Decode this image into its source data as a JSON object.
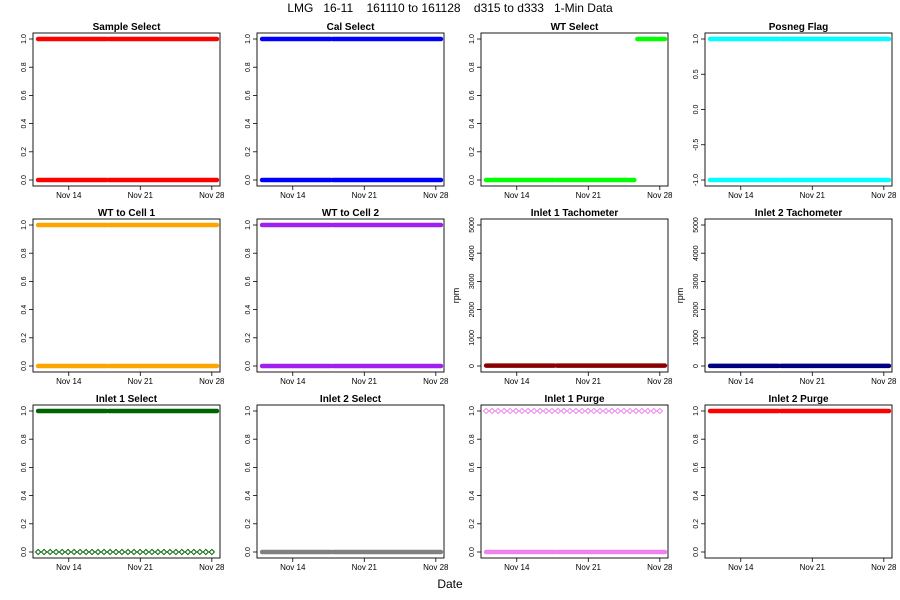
{
  "figure": {
    "title": "LMG   16-11    161110 to 161128    d315 to d333   1-Min Data",
    "xlabel": "Date"
  },
  "chart_data": [
    {
      "type": "scatter",
      "title": "Sample Select",
      "ylabel": "",
      "ylim": [
        0,
        1
      ],
      "yticks": [
        0,
        0.2,
        0.4,
        0.6,
        0.8,
        1
      ],
      "ytick_labels": [
        "0.0",
        "0.2",
        "0.4",
        "0.6",
        "0.8",
        "1.0"
      ],
      "xlim": [
        10.5,
        28.8
      ],
      "xticks": [
        14,
        21,
        28
      ],
      "xtick_labels": [
        "Nov 14",
        "Nov 21",
        "Nov 28"
      ],
      "color": "#ff0000",
      "marker": "filled",
      "series": [
        {
          "name": "level 0",
          "values": [
            {
              "x_start": 11.0,
              "x_end": 28.5,
              "y": 0
            }
          ]
        },
        {
          "name": "level 1",
          "values": [
            {
              "x_start": 11.0,
              "x_end": 28.5,
              "y": 1
            }
          ]
        }
      ],
      "gaps": [
        17.8
      ]
    },
    {
      "type": "scatter",
      "title": "Cal Select",
      "ylabel": "",
      "ylim": [
        0,
        1
      ],
      "yticks": [
        0,
        0.2,
        0.4,
        0.6,
        0.8,
        1
      ],
      "ytick_labels": [
        "0.0",
        "0.2",
        "0.4",
        "0.6",
        "0.8",
        "1.0"
      ],
      "xlim": [
        10.5,
        28.8
      ],
      "xticks": [
        14,
        21,
        28
      ],
      "xtick_labels": [
        "Nov 14",
        "Nov 21",
        "Nov 28"
      ],
      "color": "#0000ff",
      "marker": "filled",
      "series": [
        {
          "name": "level 0",
          "values": [
            {
              "x_start": 11.0,
              "x_end": 28.5,
              "y": 0
            }
          ]
        },
        {
          "name": "level 1",
          "values": [
            {
              "x_start": 11.0,
              "x_end": 28.5,
              "y": 1
            }
          ]
        }
      ],
      "gaps": [
        17.8
      ]
    },
    {
      "type": "scatter",
      "title": "WT Select",
      "ylabel": "",
      "ylim": [
        0,
        1
      ],
      "yticks": [
        0,
        0.2,
        0.4,
        0.6,
        0.8,
        1
      ],
      "ytick_labels": [
        "0.0",
        "0.2",
        "0.4",
        "0.6",
        "0.8",
        "1.0"
      ],
      "xlim": [
        10.5,
        28.8
      ],
      "xticks": [
        14,
        21,
        28
      ],
      "xtick_labels": [
        "Nov 14",
        "Nov 21",
        "Nov 28"
      ],
      "color": "#00ff00",
      "marker": "filled",
      "series": [
        {
          "name": "level 0",
          "values": [
            {
              "x_start": 11.0,
              "x_end": 25.5,
              "y": 0
            }
          ]
        },
        {
          "name": "level 1",
          "values": [
            {
              "x_start": 25.8,
              "x_end": 28.5,
              "y": 1
            }
          ]
        }
      ],
      "gaps": [
        17.8
      ]
    },
    {
      "type": "scatter",
      "title": "Posneg Flag",
      "ylabel": "",
      "ylim": [
        -1,
        1
      ],
      "yticks": [
        -1,
        -0.5,
        0,
        0.5,
        1
      ],
      "ytick_labels": [
        "-1.0",
        "-0.5",
        "0.0",
        "0.5",
        "1.0"
      ],
      "xlim": [
        10.5,
        28.8
      ],
      "xticks": [
        14,
        21,
        28
      ],
      "xtick_labels": [
        "Nov 14",
        "Nov 21",
        "Nov 28"
      ],
      "color": "#00ffff",
      "marker": "filled",
      "series": [
        {
          "name": "level -1",
          "values": [
            {
              "x_start": 11.0,
              "x_end": 28.5,
              "y": -1
            }
          ]
        },
        {
          "name": "level 1",
          "values": [
            {
              "x_start": 11.0,
              "x_end": 28.5,
              "y": 1
            }
          ]
        }
      ],
      "gaps": [
        17.8
      ]
    },
    {
      "type": "scatter",
      "title": "WT to Cell 1",
      "ylabel": "",
      "ylim": [
        0,
        1
      ],
      "yticks": [
        0,
        0.2,
        0.4,
        0.6,
        0.8,
        1
      ],
      "ytick_labels": [
        "0.0",
        "0.2",
        "0.4",
        "0.6",
        "0.8",
        "1.0"
      ],
      "xlim": [
        10.5,
        28.8
      ],
      "xticks": [
        14,
        21,
        28
      ],
      "xtick_labels": [
        "Nov 14",
        "Nov 21",
        "Nov 28"
      ],
      "color": "#ffa500",
      "marker": "filled",
      "series": [
        {
          "name": "level 0",
          "values": [
            {
              "x_start": 11.0,
              "x_end": 28.5,
              "y": 0
            }
          ]
        },
        {
          "name": "level 1",
          "values": [
            {
              "x_start": 11.0,
              "x_end": 28.5,
              "y": 1
            }
          ]
        }
      ],
      "gaps": [
        17.8
      ]
    },
    {
      "type": "scatter",
      "title": "WT to Cell 2",
      "ylabel": "",
      "ylim": [
        0,
        1
      ],
      "yticks": [
        0,
        0.2,
        0.4,
        0.6,
        0.8,
        1
      ],
      "ytick_labels": [
        "0.0",
        "0.2",
        "0.4",
        "0.6",
        "0.8",
        "1.0"
      ],
      "xlim": [
        10.5,
        28.8
      ],
      "xticks": [
        14,
        21,
        28
      ],
      "xtick_labels": [
        "Nov 14",
        "Nov 21",
        "Nov 28"
      ],
      "color": "#a020f0",
      "marker": "filled",
      "series": [
        {
          "name": "level 0",
          "values": [
            {
              "x_start": 11.0,
              "x_end": 28.5,
              "y": 0
            }
          ]
        },
        {
          "name": "level 1",
          "values": [
            {
              "x_start": 11.0,
              "x_end": 28.5,
              "y": 1
            }
          ]
        }
      ],
      "gaps": [
        17.8
      ]
    },
    {
      "type": "scatter",
      "title": "Inlet 1 Tachometer",
      "ylabel": "rpm",
      "ylim": [
        0,
        5000
      ],
      "yticks": [
        0,
        1000,
        2000,
        3000,
        4000,
        5000
      ],
      "ytick_labels": [
        "0",
        "1000",
        "2000",
        "3000",
        "4000",
        "5000"
      ],
      "xlim": [
        10.5,
        28.8
      ],
      "xticks": [
        14,
        21,
        28
      ],
      "xtick_labels": [
        "Nov 14",
        "Nov 21",
        "Nov 28"
      ],
      "color": "#8b0000",
      "marker": "filled",
      "series": [
        {
          "name": "speed",
          "values": [
            {
              "x_start": 11.0,
              "x_end": 28.5,
              "y": 15
            }
          ]
        }
      ],
      "gaps": [
        17.8
      ]
    },
    {
      "type": "scatter",
      "title": "Inlet 2 Tachometer",
      "ylabel": "rpm",
      "ylim": [
        0,
        5000
      ],
      "yticks": [
        0,
        1000,
        2000,
        3000,
        4000,
        5000
      ],
      "ytick_labels": [
        "0",
        "1000",
        "2000",
        "3000",
        "4000",
        "5000"
      ],
      "xlim": [
        10.5,
        28.8
      ],
      "xticks": [
        14,
        21,
        28
      ],
      "xtick_labels": [
        "Nov 14",
        "Nov 21",
        "Nov 28"
      ],
      "color": "#000080",
      "marker": "filled",
      "series": [
        {
          "name": "speed",
          "values": [
            {
              "x_start": 11.0,
              "x_end": 28.5,
              "y": 5
            }
          ]
        }
      ],
      "gaps": [
        17.8
      ]
    },
    {
      "type": "scatter",
      "title": "Inlet 1 Select",
      "ylabel": "",
      "ylim": [
        0,
        1
      ],
      "yticks": [
        0,
        0.2,
        0.4,
        0.6,
        0.8,
        1
      ],
      "ytick_labels": [
        "0.0",
        "0.2",
        "0.4",
        "0.6",
        "0.8",
        "1.0"
      ],
      "xlim": [
        10.5,
        28.8
      ],
      "xticks": [
        14,
        21,
        28
      ],
      "xtick_labels": [
        "Nov 14",
        "Nov 21",
        "Nov 28"
      ],
      "color": "#006400",
      "marker": "filled",
      "series": [
        {
          "name": "level 1",
          "values": [
            {
              "x_start": 11.0,
              "x_end": 28.5,
              "y": 1
            }
          ]
        },
        {
          "name": "level 0",
          "marker": "open-diamond",
          "values": [
            {
              "x_start": 11.0,
              "x_end": 28.0,
              "y": 0,
              "count": 30
            }
          ]
        }
      ],
      "gaps": [
        17.8
      ]
    },
    {
      "type": "scatter",
      "title": "Inlet 2 Select",
      "ylabel": "",
      "ylim": [
        0,
        1
      ],
      "yticks": [
        0,
        0.2,
        0.4,
        0.6,
        0.8,
        1
      ],
      "ytick_labels": [
        "0.0",
        "0.2",
        "0.4",
        "0.6",
        "0.8",
        "1.0"
      ],
      "xlim": [
        10.5,
        28.8
      ],
      "xticks": [
        14,
        21,
        28
      ],
      "xtick_labels": [
        "Nov 14",
        "Nov 21",
        "Nov 28"
      ],
      "color": "#808080",
      "marker": "filled",
      "series": [
        {
          "name": "level 0",
          "values": [
            {
              "x_start": 11.0,
              "x_end": 28.5,
              "y": 0
            }
          ]
        }
      ],
      "gaps": [
        17.8
      ]
    },
    {
      "type": "scatter",
      "title": "Inlet 1 Purge",
      "ylabel": "",
      "ylim": [
        0,
        1
      ],
      "yticks": [
        0,
        0.2,
        0.4,
        0.6,
        0.8,
        1
      ],
      "ytick_labels": [
        "0.0",
        "0.2",
        "0.4",
        "0.6",
        "0.8",
        "1.0"
      ],
      "xlim": [
        10.5,
        28.8
      ],
      "xticks": [
        14,
        21,
        28
      ],
      "xtick_labels": [
        "Nov 14",
        "Nov 21",
        "Nov 28"
      ],
      "color": "#ee82ee",
      "marker": "filled",
      "series": [
        {
          "name": "level 0",
          "values": [
            {
              "x_start": 11.0,
              "x_end": 28.5,
              "y": 0
            }
          ]
        },
        {
          "name": "level 1",
          "marker": "open-diamond",
          "values": [
            {
              "x_start": 11.0,
              "x_end": 28.0,
              "y": 1,
              "count": 30
            }
          ]
        }
      ],
      "gaps": [
        17.8
      ]
    },
    {
      "type": "scatter",
      "title": "Inlet 2 Purge",
      "ylabel": "",
      "ylim": [
        0,
        1
      ],
      "yticks": [
        0,
        0.2,
        0.4,
        0.6,
        0.8,
        1
      ],
      "ytick_labels": [
        "0.0",
        "0.2",
        "0.4",
        "0.6",
        "0.8",
        "1.0"
      ],
      "xlim": [
        10.5,
        28.8
      ],
      "xticks": [
        14,
        21,
        28
      ],
      "xtick_labels": [
        "Nov 14",
        "Nov 21",
        "Nov 28"
      ],
      "color": "#ff0000",
      "marker": "filled",
      "series": [
        {
          "name": "level 1",
          "values": [
            {
              "x_start": 11.0,
              "x_end": 28.5,
              "y": 1
            }
          ]
        }
      ],
      "gaps": [
        17.8
      ]
    }
  ]
}
